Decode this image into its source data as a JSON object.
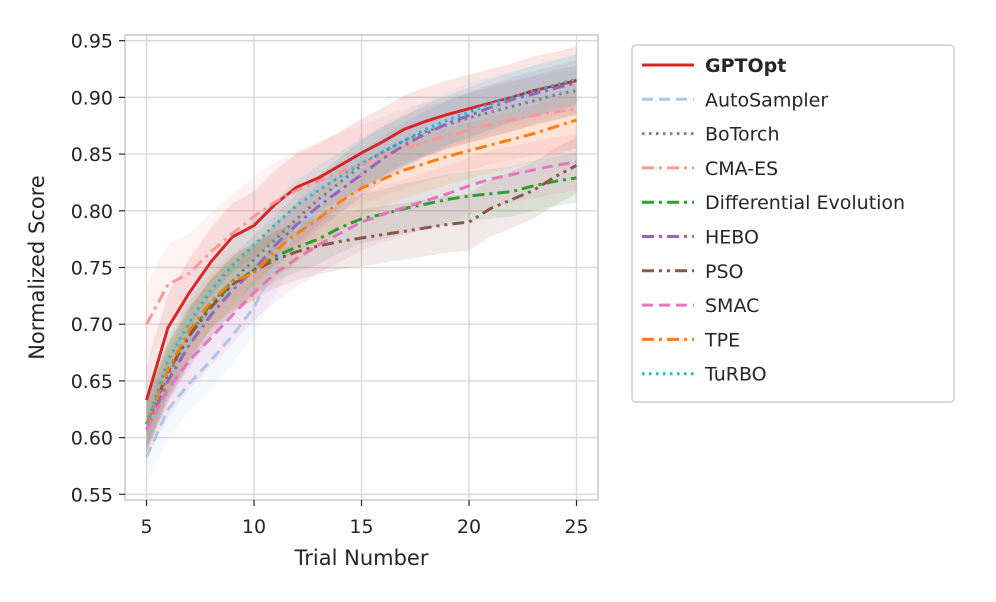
{
  "chart_data": {
    "type": "line",
    "title": "",
    "xlabel": "Trial Number",
    "ylabel": "Normalized Score",
    "xlim": [
      4,
      26
    ],
    "ylim": [
      0.545,
      0.955
    ],
    "xticks": [
      5,
      10,
      15,
      20,
      25
    ],
    "yticks": [
      0.55,
      0.6,
      0.65,
      0.7,
      0.75,
      0.8,
      0.85,
      0.9,
      0.95
    ],
    "xtick_labels": [
      "5",
      "10",
      "15",
      "20",
      "25"
    ],
    "ytick_labels": [
      "0.55",
      "0.60",
      "0.65",
      "0.70",
      "0.75",
      "0.80",
      "0.85",
      "0.90",
      "0.95"
    ],
    "grid": true,
    "legend_position": "outside-right",
    "x": [
      5,
      6,
      7,
      8,
      9,
      10,
      11,
      12,
      13,
      14,
      15,
      16,
      17,
      18,
      19,
      20,
      21,
      22,
      23,
      24,
      25
    ],
    "series": [
      {
        "name": "GPTOpt",
        "color": "#d62728",
        "dash": "solid",
        "bold": true,
        "band": 0.03,
        "values": [
          0.633,
          0.697,
          0.728,
          0.755,
          0.777,
          0.787,
          0.806,
          0.821,
          0.829,
          0.84,
          0.851,
          0.861,
          0.872,
          0.879,
          0.885,
          0.89,
          0.895,
          0.9,
          0.906,
          0.91,
          0.915
        ]
      },
      {
        "name": "AutoSampler",
        "color": "#aec7e8",
        "dash": "dashed",
        "bold": false,
        "band": 0.025,
        "values": [
          0.583,
          0.625,
          0.648,
          0.668,
          0.69,
          0.715,
          0.752,
          0.785,
          0.805,
          0.823,
          0.838,
          0.852,
          0.862,
          0.872,
          0.88,
          0.887,
          0.893,
          0.898,
          0.903,
          0.908,
          0.912
        ]
      },
      {
        "name": "BoTorch",
        "color": "#7f7f7f",
        "dash": "dotted",
        "bold": false,
        "band": 0.022,
        "values": [
          0.612,
          0.655,
          0.69,
          0.718,
          0.738,
          0.757,
          0.775,
          0.793,
          0.81,
          0.825,
          0.84,
          0.852,
          0.862,
          0.87,
          0.876,
          0.882,
          0.887,
          0.892,
          0.897,
          0.902,
          0.906
        ]
      },
      {
        "name": "CMA-ES",
        "color": "#ff9896",
        "dash": "dashdot",
        "bold": false,
        "band": 0.035,
        "values": [
          0.7,
          0.735,
          0.745,
          0.764,
          0.78,
          0.795,
          0.808,
          0.818,
          0.826,
          0.834,
          0.841,
          0.848,
          0.855,
          0.861,
          0.866,
          0.871,
          0.876,
          0.88,
          0.884,
          0.887,
          0.89
        ]
      },
      {
        "name": "Differential Evolution",
        "color": "#2ca02c",
        "dash": "dashdot",
        "bold": false,
        "band": 0.022,
        "values": [
          0.612,
          0.66,
          0.693,
          0.718,
          0.735,
          0.748,
          0.76,
          0.768,
          0.775,
          0.785,
          0.793,
          0.797,
          0.802,
          0.806,
          0.81,
          0.813,
          0.815,
          0.817,
          0.822,
          0.826,
          0.829
        ]
      },
      {
        "name": "HEBO",
        "color": "#9467bd",
        "dash": "dashdot",
        "bold": false,
        "band": 0.02,
        "values": [
          0.607,
          0.65,
          0.682,
          0.708,
          0.73,
          0.748,
          0.77,
          0.788,
          0.804,
          0.818,
          0.832,
          0.846,
          0.858,
          0.868,
          0.877,
          0.884,
          0.891,
          0.898,
          0.903,
          0.908,
          0.913
        ]
      },
      {
        "name": "PSO",
        "color": "#8c564b",
        "dash": "dashdotdot",
        "bold": false,
        "band": 0.025,
        "values": [
          0.612,
          0.658,
          0.69,
          0.715,
          0.735,
          0.747,
          0.757,
          0.764,
          0.769,
          0.773,
          0.776,
          0.779,
          0.782,
          0.785,
          0.788,
          0.79,
          0.802,
          0.81,
          0.818,
          0.83,
          0.84
        ]
      },
      {
        "name": "SMAC",
        "color": "#e377c2",
        "dash": "dashed",
        "bold": false,
        "band": 0.025,
        "values": [
          0.607,
          0.643,
          0.668,
          0.688,
          0.708,
          0.728,
          0.745,
          0.758,
          0.77,
          0.78,
          0.79,
          0.797,
          0.803,
          0.809,
          0.815,
          0.822,
          0.828,
          0.832,
          0.836,
          0.84,
          0.843
        ]
      },
      {
        "name": "TPE",
        "color": "#ff7f0e",
        "dash": "dashdot",
        "bold": false,
        "band": 0.025,
        "values": [
          0.612,
          0.66,
          0.695,
          0.72,
          0.738,
          0.745,
          0.765,
          0.78,
          0.793,
          0.808,
          0.82,
          0.828,
          0.836,
          0.842,
          0.848,
          0.853,
          0.858,
          0.863,
          0.868,
          0.874,
          0.88
        ]
      },
      {
        "name": "TuRBO",
        "color": "#17becf",
        "dash": "dotted",
        "bold": false,
        "band": 0.022,
        "values": [
          0.612,
          0.668,
          0.702,
          0.73,
          0.752,
          0.77,
          0.788,
          0.805,
          0.818,
          0.83,
          0.842,
          0.852,
          0.862,
          0.872,
          0.88,
          0.887,
          0.894,
          0.9,
          0.906,
          0.911,
          0.916
        ]
      }
    ]
  }
}
